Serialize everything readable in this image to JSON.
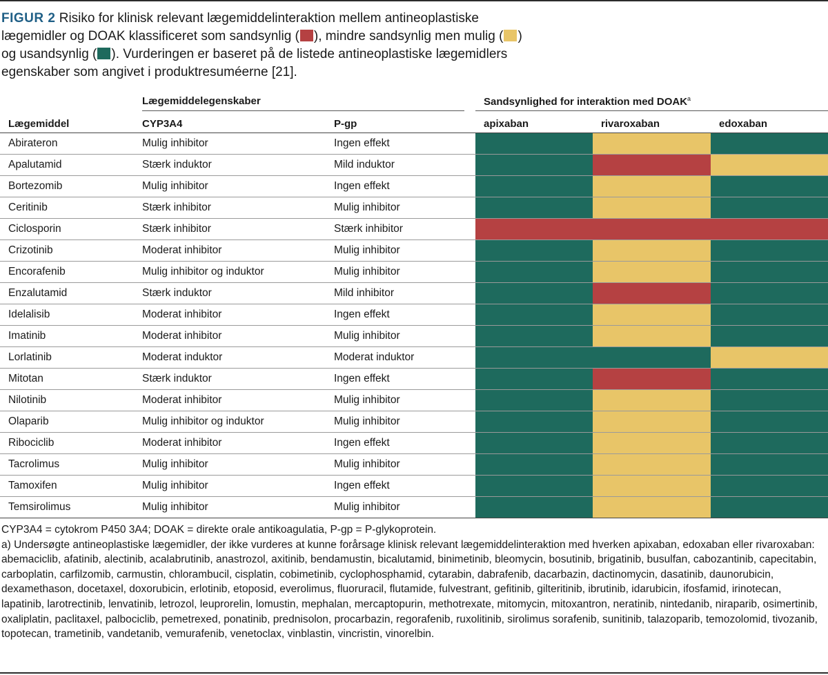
{
  "caption": {
    "figure_label": "FIGUR 2",
    "text_part1": " Risiko for klinisk relevant lægemiddelinteraktion mellem antineoplastiske lægemidler og DOAK klassificeret som sandsynlig (",
    "text_part2": "), mindre sandsynlig men mulig (",
    "text_part3": ") og usandsynlig (",
    "text_part4": "). Vurderingen er baseret på de listede antineoplastiske lægemidlers egenskaber som angivet i produktresuméerne [21]."
  },
  "colors": {
    "likely": "#b54142",
    "possible": "#e8c568",
    "unlikely": "#1e6a5d"
  },
  "group_headers": {
    "properties": "Lægemiddelegenskaber",
    "likelihood": "Sandsynlighed for interaktion med DOAK",
    "likelihood_sup": "a"
  },
  "columns": {
    "drug": "Lægemiddel",
    "cyp3a4": "CYP3A4",
    "pgp": "P-gp",
    "apixaban": "apixaban",
    "rivaroxaban": "rivaroxaban",
    "edoxaban": "edoxaban"
  },
  "rows": [
    {
      "drug": "Abirateron",
      "cyp3a4": "Mulig inhibitor",
      "pgp": "Ingen effekt",
      "apixaban": "unlikely",
      "rivaroxaban": "possible",
      "edoxaban": "unlikely"
    },
    {
      "drug": "Apalutamid",
      "cyp3a4": "Stærk induktor",
      "pgp": "Mild induktor",
      "apixaban": "unlikely",
      "rivaroxaban": "likely",
      "edoxaban": "possible"
    },
    {
      "drug": "Bortezomib",
      "cyp3a4": "Mulig inhibitor",
      "pgp": "Ingen effekt",
      "apixaban": "unlikely",
      "rivaroxaban": "possible",
      "edoxaban": "unlikely"
    },
    {
      "drug": "Ceritinib",
      "cyp3a4": "Stærk inhibitor",
      "pgp": "Mulig inhibitor",
      "apixaban": "unlikely",
      "rivaroxaban": "possible",
      "edoxaban": "unlikely"
    },
    {
      "drug": "Ciclosporin",
      "cyp3a4": "Stærk inhibitor",
      "pgp": "Stærk inhibitor",
      "apixaban": "likely",
      "rivaroxaban": "likely",
      "edoxaban": "likely"
    },
    {
      "drug": "Crizotinib",
      "cyp3a4": "Moderat inhibitor",
      "pgp": "Mulig inhibitor",
      "apixaban": "unlikely",
      "rivaroxaban": "possible",
      "edoxaban": "unlikely"
    },
    {
      "drug": "Encorafenib",
      "cyp3a4": "Mulig inhibitor og induktor",
      "pgp": "Mulig inhibitor",
      "apixaban": "unlikely",
      "rivaroxaban": "possible",
      "edoxaban": "unlikely"
    },
    {
      "drug": "Enzalutamid",
      "cyp3a4": "Stærk induktor",
      "pgp": "Mild inhibitor",
      "apixaban": "unlikely",
      "rivaroxaban": "likely",
      "edoxaban": "unlikely"
    },
    {
      "drug": "Idelalisib",
      "cyp3a4": "Moderat inhibitor",
      "pgp": "Ingen effekt",
      "apixaban": "unlikely",
      "rivaroxaban": "possible",
      "edoxaban": "unlikely"
    },
    {
      "drug": "Imatinib",
      "cyp3a4": "Moderat inhibitor",
      "pgp": "Mulig inhibitor",
      "apixaban": "unlikely",
      "rivaroxaban": "possible",
      "edoxaban": "unlikely"
    },
    {
      "drug": "Lorlatinib",
      "cyp3a4": "Moderat induktor",
      "pgp": "Moderat induktor",
      "apixaban": "unlikely",
      "rivaroxaban": "unlikely",
      "edoxaban": "possible"
    },
    {
      "drug": "Mitotan",
      "cyp3a4": "Stærk induktor",
      "pgp": "Ingen effekt",
      "apixaban": "unlikely",
      "rivaroxaban": "likely",
      "edoxaban": "unlikely"
    },
    {
      "drug": "Nilotinib",
      "cyp3a4": "Moderat inhibitor",
      "pgp": "Mulig inhibitor",
      "apixaban": "unlikely",
      "rivaroxaban": "possible",
      "edoxaban": "unlikely"
    },
    {
      "drug": "Olaparib",
      "cyp3a4": "Mulig inhibitor og induktor",
      "pgp": "Mulig inhibitor",
      "apixaban": "unlikely",
      "rivaroxaban": "possible",
      "edoxaban": "unlikely"
    },
    {
      "drug": "Ribociclib",
      "cyp3a4": "Moderat inhibitor",
      "pgp": "Ingen effekt",
      "apixaban": "unlikely",
      "rivaroxaban": "possible",
      "edoxaban": "unlikely"
    },
    {
      "drug": "Tacrolimus",
      "cyp3a4": "Mulig inhibitor",
      "pgp": "Mulig inhibitor",
      "apixaban": "unlikely",
      "rivaroxaban": "possible",
      "edoxaban": "unlikely"
    },
    {
      "drug": "Tamoxifen",
      "cyp3a4": "Mulig inhibitor",
      "pgp": "Ingen effekt",
      "apixaban": "unlikely",
      "rivaroxaban": "possible",
      "edoxaban": "unlikely"
    },
    {
      "drug": "Temsirolimus",
      "cyp3a4": "Mulig inhibitor",
      "pgp": "Mulig inhibitor",
      "apixaban": "unlikely",
      "rivaroxaban": "possible",
      "edoxaban": "unlikely"
    }
  ],
  "notes": {
    "abbreviations": "CYP3A4 = cytokrom P450 3A4; DOAK = direkte orale antikoagulatia, P-gp = P-glykoprotein.",
    "footnote_a": "a) Undersøgte antineoplastiske lægemidler, der ikke vurderes at kunne forårsage klinisk relevant lægemiddelinteraktion med hverken apixaban, edoxaban eller rivaroxaban: abemaciclib, afatinib, alectinib, acalabrutinib, anastrozol, axitinib, bendamustin, bicalutamid, binimetinib, bleomycin, bosutinib, brigatinib, busulfan, cabozantinib, capecitabin, carboplatin, carfilzomib, carmustin, chlorambucil, cisplatin, cobimetinib, cyclophosphamid, cytarabin, dabrafenib, dacarbazin, dactinomycin, dasatinib, daunorubicin, dexamethason, docetaxel, doxorubicin, erlotinib, etoposid, everolimus, fluoruracil, flutamide, fulvestrant, gefitinib, gilteritinib, ibrutinib, idarubicin, ifosfamid, irinotecan, lapatinib, larotrectinib, lenvatinib, letrozol, leuprorelin, lomustin, mephalan, mercaptopurin, methotrexate, mitomycin, mitoxantron, neratinib, nintedanib, niraparib, osimertinib, oxaliplatin, paclitaxel, palbociclib, pemetrexed, ponatinib, prednisolon, procarbazin, regorafenib, ruxolitinib, sirolimus sorafenib, sunitinib, talazoparib, temozolomid, tivozanib, topotecan, trametinib, vandetanib, vemurafenib, venetoclax, vinblastin, vincristin, vinorelbin."
  }
}
